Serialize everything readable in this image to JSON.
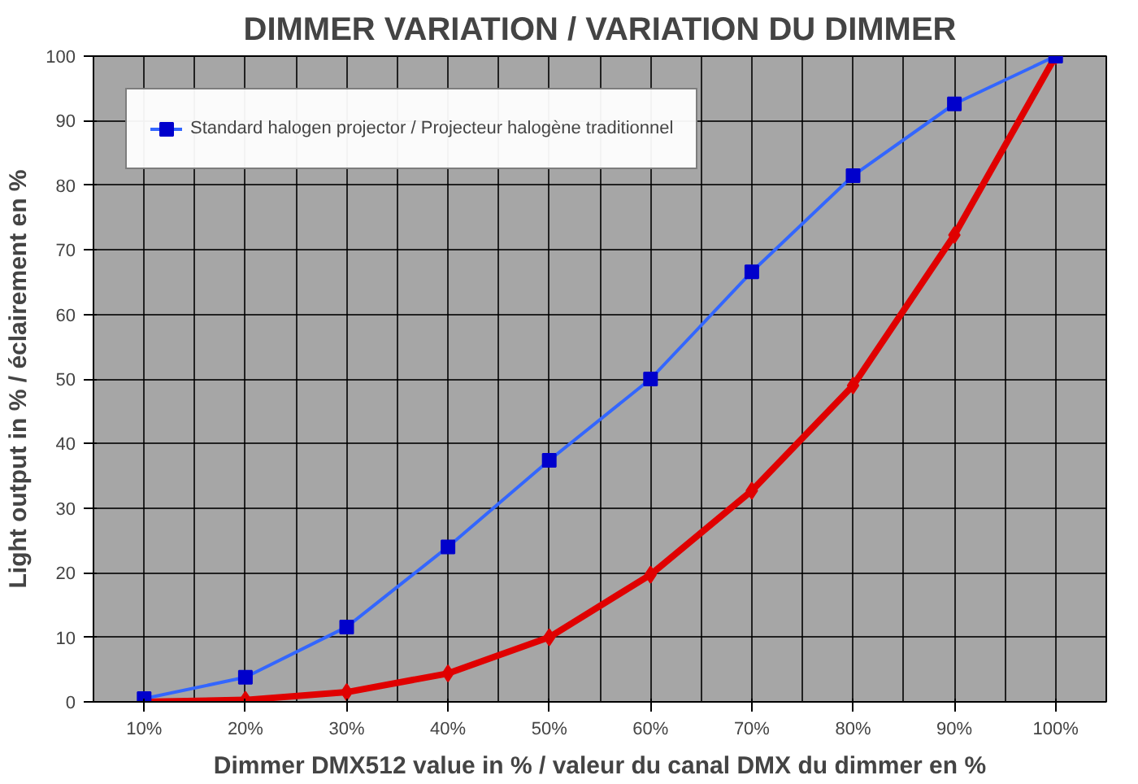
{
  "chart_data": {
    "type": "line",
    "title": "DIMMER VARIATION / VARIATION DU DIMMER",
    "xlabel": "Dimmer DMX512 value in % / valeur du canal DMX du dimmer en %",
    "ylabel": "Light output in % / éclairement en %",
    "categories": [
      "10%",
      "20%",
      "30%",
      "40%",
      "50%",
      "60%",
      "70%",
      "80%",
      "90%",
      "100%"
    ],
    "series": [
      {
        "color": "#e00000",
        "marker": "diamond",
        "values": [
          0,
          0.3,
          1.5,
          4.4,
          10,
          19.7,
          32.7,
          49,
          72.3,
          100
        ]
      },
      {
        "name": "Standard halogen projector / Projecteur halogène traditionnel",
        "color": "#3366ff",
        "marker": "square",
        "values": [
          0.5,
          3.8,
          11.6,
          24,
          37.4,
          50,
          66.6,
          81.5,
          92.6,
          100
        ]
      }
    ],
    "ylim": [
      0,
      100
    ],
    "yticks": [
      0,
      10,
      20,
      30,
      40,
      50,
      60,
      70,
      80,
      90,
      100
    ],
    "grid": true,
    "legend": "top left"
  }
}
